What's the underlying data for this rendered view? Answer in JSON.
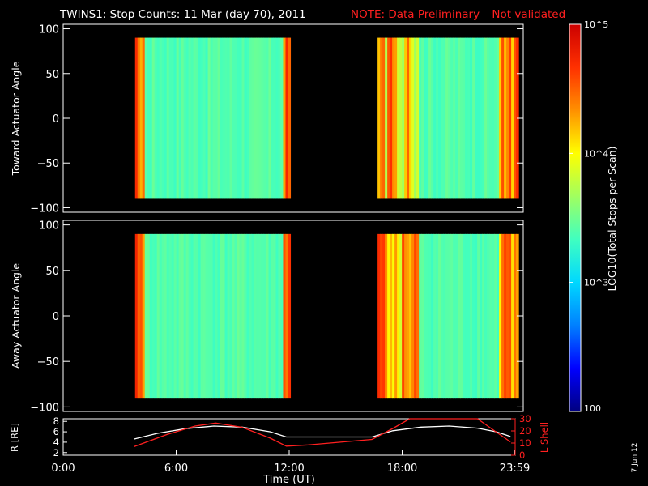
{
  "header": {
    "title": "TWINS1: Stop Counts: 11 Mar (day  70), 2011",
    "note": "NOTE: Data Preliminary – Not validated",
    "note_color": "#ff2020"
  },
  "side_date": "7 Jun 12",
  "colorbar": {
    "label": "LOG10(Total Stops per Scan)",
    "ticks": [
      {
        "value": 100,
        "label": "100"
      },
      {
        "value": 1000,
        "label": "10^3"
      },
      {
        "value": 10000,
        "label": "10^4"
      },
      {
        "value": 100000,
        "label": "10^5"
      }
    ],
    "colormap": [
      "#000080",
      "#0000ff",
      "#0080ff",
      "#00d8ff",
      "#40ffc0",
      "#a0ff60",
      "#ffff00",
      "#ff9000",
      "#ff3000",
      "#cc0000"
    ]
  },
  "chart_data": [
    {
      "type": "heatmap",
      "ylabel": "Toward Actuator Angle",
      "xlim": [
        0,
        24
      ],
      "ylim": [
        -105,
        105
      ],
      "yticks": [
        "100",
        "50",
        "0",
        "−50",
        "−100"
      ],
      "ytick_values": [
        100,
        50,
        0,
        -50,
        -100
      ],
      "angle_range": [
        -90,
        90
      ],
      "data_intervals_ut_hours": [
        [
          3.75,
          11.85
        ],
        [
          16.4,
          23.75
        ]
      ],
      "typical_log_counts": 3.4
    },
    {
      "type": "heatmap",
      "ylabel": "Away Actuator Angle",
      "xlim": [
        0,
        24
      ],
      "ylim": [
        -105,
        105
      ],
      "yticks": [
        "100",
        "50",
        "0",
        "−50",
        "−100"
      ],
      "ytick_values": [
        100,
        50,
        0,
        -50,
        -100
      ],
      "angle_range": [
        -90,
        90
      ],
      "data_intervals_ut_hours": [
        [
          3.75,
          11.85
        ],
        [
          16.4,
          23.75
        ]
      ],
      "typical_log_counts": 3.4
    },
    {
      "type": "line",
      "xlabel": "Time (UT)",
      "xlim": [
        0,
        24
      ],
      "xticks": [
        "0:00",
        "6:00",
        "12:00",
        "18:00",
        "23:59"
      ],
      "xtick_values": [
        0,
        6,
        12,
        18,
        23.98
      ],
      "ylabel_left": "R [RE]",
      "ylim_left": [
        1.5,
        8.5
      ],
      "yticks_left": [
        "8",
        "6",
        "4",
        "2"
      ],
      "ytick_values_left": [
        8,
        6,
        4,
        2
      ],
      "ylabel_right": "L Shell",
      "ylim_right": [
        0,
        30
      ],
      "yticks_right": [
        "30",
        "20",
        "10",
        "0"
      ],
      "ytick_values_right": [
        30,
        20,
        10,
        0
      ],
      "series": [
        {
          "name": "R",
          "color": "#ffffff",
          "axis": "left",
          "x": [
            3.75,
            5,
            6.5,
            8,
            9.5,
            11,
            11.85,
            13,
            16.4,
            17.5,
            19,
            20.5,
            22,
            23,
            23.75
          ],
          "values": [
            4.6,
            5.7,
            6.6,
            7.1,
            6.9,
            6.0,
            5.0,
            5.0,
            5.0,
            6.2,
            6.9,
            7.1,
            6.7,
            6.0,
            5.1
          ]
        },
        {
          "name": "L Shell",
          "color": "#ff2020",
          "axis": "right",
          "x": [
            3.75,
            5.5,
            7,
            8.1,
            9.5,
            11,
            11.85,
            13,
            16.4,
            17.5,
            18.4,
            18.5,
            21,
            22,
            23,
            23.75
          ],
          "values": [
            7,
            17,
            24,
            26.5,
            23,
            14,
            7.5,
            8.5,
            13,
            22,
            30,
            30,
            30,
            30,
            19,
            11
          ]
        }
      ]
    }
  ]
}
